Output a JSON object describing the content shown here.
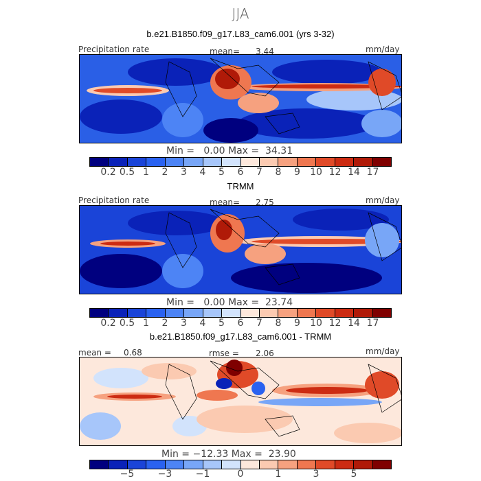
{
  "season": "JJA",
  "panels": [
    {
      "title": "b.e21.B1850.f09_g17.L83_cam6.001 (yrs 3-32)",
      "left_label": "Precipitation rate",
      "mean_label": "mean=",
      "mean_value": "3.44",
      "units": "mm/day",
      "minmax": "Min =   0.00 Max =  34.31",
      "colorbar": [
        "#00007f",
        "#0a22b8",
        "#1a44d8",
        "#2a62f0",
        "#4d84f5",
        "#78a6f7",
        "#a7c6fa",
        "#d2e3fc",
        "#fde8dc",
        "#fbcab1",
        "#f6a17f",
        "#ef7750",
        "#e04a28",
        "#cc2b12",
        "#b01a08",
        "#7f0000"
      ],
      "ticks": [
        "0.2",
        "0.5",
        "1",
        "2",
        "3",
        "4",
        "5",
        "6",
        "7",
        "8",
        "9",
        "10",
        "12",
        "14",
        "17"
      ]
    },
    {
      "title": "TRMM",
      "left_label": "Precipitation rate",
      "mean_label": "mean=",
      "mean_value": "2.75",
      "units": "mm/day",
      "minmax": "Min =   0.00 Max =  23.74",
      "colorbar": [
        "#00007f",
        "#0a22b8",
        "#1a44d8",
        "#2a62f0",
        "#4d84f5",
        "#78a6f7",
        "#a7c6fa",
        "#d2e3fc",
        "#fde8dc",
        "#fbcab1",
        "#f6a17f",
        "#ef7750",
        "#e04a28",
        "#cc2b12",
        "#b01a08",
        "#7f0000"
      ],
      "ticks": [
        "0.2",
        "0.5",
        "1",
        "2",
        "3",
        "4",
        "5",
        "6",
        "7",
        "8",
        "9",
        "10",
        "12",
        "14",
        "17"
      ]
    },
    {
      "title": "b.e21.B1850.f09_g17.L83_cam6.001 - TRMM",
      "left_label": "mean =",
      "mean_label": "rmse =",
      "left_value": "0.68",
      "mean_value": "2.06",
      "units": "mm/day",
      "minmax": "Min = −12.33 Max =  23.90",
      "colorbar": [
        "#00007f",
        "#0a22b8",
        "#1a44d8",
        "#2a62f0",
        "#4d84f5",
        "#78a6f7",
        "#a7c6fa",
        "#d2e3fc",
        "#fde8dc",
        "#fbcab1",
        "#f6a17f",
        "#ef7750",
        "#e04a28",
        "#cc2b12",
        "#b01a08",
        "#7f0000"
      ],
      "ticks": [
        "−5",
        "−3",
        "−1",
        "0",
        "1",
        "3",
        "5"
      ]
    }
  ]
}
